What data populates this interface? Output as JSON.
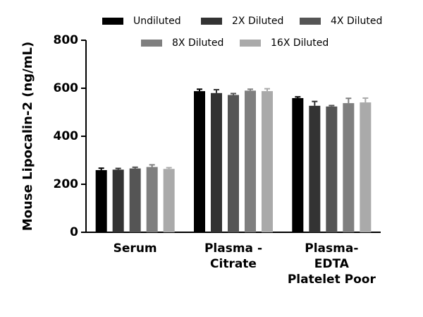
{
  "chart_data": {
    "type": "bar",
    "y_label": "Mouse Lipocalin-2 (ng/mL)",
    "categories": [
      "Serum",
      "Plasma -\nCitrate",
      "Plasma-\nEDTA\nPlatelet Poor"
    ],
    "series": [
      {
        "name": "Undiluted",
        "color": "#000000",
        "values": [
          259,
          588,
          559
        ],
        "errors": [
          8,
          8,
          5
        ]
      },
      {
        "name": "2X Diluted",
        "color": "#333333",
        "values": [
          261,
          580,
          527
        ],
        "errors": [
          5,
          14,
          18
        ]
      },
      {
        "name": "4X Diluted",
        "color": "#555555",
        "values": [
          266,
          572,
          524
        ],
        "errors": [
          5,
          6,
          4
        ]
      },
      {
        "name": "8X Diluted",
        "color": "#7f7f7f",
        "values": [
          272,
          590,
          538
        ],
        "errors": [
          9,
          6,
          20
        ]
      },
      {
        "name": "16X Diluted",
        "color": "#aaaaaa",
        "values": [
          264,
          588,
          541
        ],
        "errors": [
          5,
          10,
          18
        ]
      }
    ],
    "ylim": [
      0,
      800
    ],
    "yticks": [
      0,
      200,
      400,
      600,
      800
    ],
    "grid": false
  }
}
